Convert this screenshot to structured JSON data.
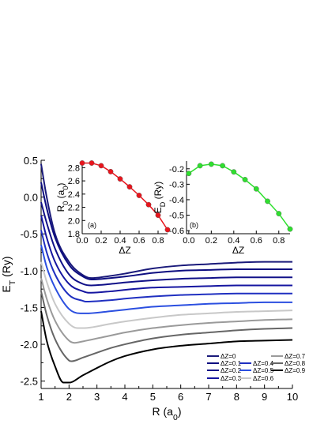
{
  "chart_data": [
    {
      "id": "main",
      "type": "line",
      "xlabel_main": "R (a",
      "xlabel_sub": "0",
      "xlabel_end": ")",
      "ylabel_main": "E",
      "ylabel_sub": "T",
      "ylabel_end": " (Ry)",
      "xlim": [
        1,
        10
      ],
      "ylim": [
        -2.6,
        0.5
      ],
      "xticks": [
        "1",
        "2",
        "3",
        "4",
        "5",
        "6",
        "7",
        "8",
        "9",
        "10"
      ],
      "yticks": [
        "0.5",
        "0.0",
        "-0.5",
        "-1.0",
        "-1.5",
        "-2.0",
        "-2.5"
      ],
      "grid": false,
      "legend_position": "bottom-right",
      "series": [
        {
          "name": "ΔZ=0",
          "color": "#1a1a7a",
          "x": [
            1.0,
            1.2,
            1.5,
            2.0,
            2.5,
            2.8,
            3.5,
            4.0,
            5.0,
            6.0,
            7.0,
            8.0,
            9.0,
            10.0
          ],
          "y": [
            0.45,
            0.0,
            -0.5,
            -0.88,
            -1.06,
            -1.1,
            -1.07,
            -1.04,
            -0.97,
            -0.93,
            -0.91,
            -0.89,
            -0.88,
            -0.88
          ]
        },
        {
          "name": "ΔZ=0.1",
          "color": "#0d0d80",
          "x": [
            1.0,
            1.2,
            1.5,
            2.0,
            2.5,
            2.8,
            3.5,
            4.0,
            5.0,
            6.0,
            7.0,
            8.0,
            9.0,
            10.0
          ],
          "y": [
            0.2,
            -0.15,
            -0.55,
            -0.92,
            -1.08,
            -1.12,
            -1.1,
            -1.08,
            -1.03,
            -1.0,
            -0.99,
            -0.98,
            -0.98,
            -0.98
          ]
        },
        {
          "name": "ΔZ=0.2",
          "color": "#101088",
          "x": [
            1.0,
            1.2,
            1.5,
            2.0,
            2.5,
            2.8,
            3.5,
            4.0,
            5.0,
            6.0,
            7.0,
            8.0,
            9.0,
            10.0
          ],
          "y": [
            -0.07,
            -0.35,
            -0.7,
            -1.05,
            -1.18,
            -1.2,
            -1.18,
            -1.16,
            -1.13,
            -1.11,
            -1.1,
            -1.09,
            -1.09,
            -1.09
          ]
        },
        {
          "name": "ΔZ=0.3",
          "color": "#1515a0",
          "x": [
            1.0,
            1.2,
            1.5,
            2.0,
            2.5,
            2.7,
            3.5,
            4.0,
            5.0,
            6.0,
            7.0,
            8.0,
            9.0,
            10.0
          ],
          "y": [
            -0.25,
            -0.55,
            -0.88,
            -1.18,
            -1.28,
            -1.3,
            -1.28,
            -1.26,
            -1.23,
            -1.22,
            -1.21,
            -1.2,
            -1.2,
            -1.2
          ]
        },
        {
          "name": "ΔZ=0.4",
          "color": "#1f2fc0",
          "x": [
            1.0,
            1.2,
            1.5,
            2.0,
            2.5,
            2.6,
            3.5,
            4.0,
            5.0,
            6.0,
            7.0,
            8.0,
            9.0,
            10.0
          ],
          "y": [
            -0.45,
            -0.75,
            -1.05,
            -1.33,
            -1.41,
            -1.42,
            -1.4,
            -1.38,
            -1.35,
            -1.33,
            -1.32,
            -1.31,
            -1.31,
            -1.31
          ]
        },
        {
          "name": "ΔZ=0.5",
          "color": "#2b4fe0",
          "x": [
            1.0,
            1.2,
            1.5,
            2.0,
            2.4,
            2.6,
            3.5,
            4.0,
            5.0,
            6.0,
            7.0,
            8.0,
            9.0,
            10.0
          ],
          "y": [
            -0.65,
            -0.95,
            -1.23,
            -1.52,
            -1.58,
            -1.58,
            -1.55,
            -1.53,
            -1.49,
            -1.47,
            -1.45,
            -1.44,
            -1.43,
            -1.43
          ]
        },
        {
          "name": "ΔZ=0.6",
          "color": "#c8c8c8",
          "x": [
            1.0,
            1.2,
            1.5,
            2.0,
            2.3,
            2.5,
            3.5,
            4.0,
            5.0,
            6.0,
            7.0,
            8.0,
            9.0,
            10.0
          ],
          "y": [
            -0.88,
            -1.15,
            -1.45,
            -1.72,
            -1.78,
            -1.78,
            -1.72,
            -1.69,
            -1.64,
            -1.6,
            -1.58,
            -1.56,
            -1.55,
            -1.54
          ]
        },
        {
          "name": "ΔZ=0.7",
          "color": "#9a9a9a",
          "x": [
            1.0,
            1.2,
            1.5,
            2.0,
            2.2,
            2.5,
            3.5,
            4.0,
            5.0,
            6.0,
            7.0,
            8.0,
            9.0,
            10.0
          ],
          "y": [
            -1.1,
            -1.38,
            -1.68,
            -1.95,
            -1.98,
            -1.96,
            -1.88,
            -1.84,
            -1.78,
            -1.74,
            -1.71,
            -1.69,
            -1.67,
            -1.66
          ]
        },
        {
          "name": "ΔZ=0.8",
          "color": "#666666",
          "x": [
            1.0,
            1.2,
            1.5,
            2.0,
            2.1,
            2.5,
            3.5,
            4.0,
            5.0,
            6.0,
            7.0,
            8.0,
            9.0,
            10.0
          ],
          "y": [
            -1.28,
            -1.6,
            -1.93,
            -2.22,
            -2.23,
            -2.18,
            -2.05,
            -2.0,
            -1.92,
            -1.87,
            -1.84,
            -1.81,
            -1.79,
            -1.78
          ]
        },
        {
          "name": "ΔZ=0.9",
          "color": "#000000",
          "x": [
            1.0,
            1.2,
            1.5,
            1.8,
            2.0,
            2.5,
            3.5,
            4.0,
            5.0,
            6.0,
            7.0,
            8.0,
            9.0,
            10.0
          ],
          "y": [
            -1.55,
            -1.95,
            -2.3,
            -2.52,
            -2.52,
            -2.42,
            -2.23,
            -2.16,
            -2.07,
            -2.02,
            -1.99,
            -1.96,
            -1.95,
            -1.94
          ]
        }
      ]
    },
    {
      "id": "inset_a",
      "type": "line",
      "panel_label": "(a)",
      "xlabel": "ΔZ",
      "ylabel_main": "R",
      "ylabel_sub": "0",
      "ylabel_end": " (a",
      "ylabel_sub2": "0",
      "ylabel_end2": ")",
      "xlim": [
        0.0,
        0.9
      ],
      "ylim": [
        1.8,
        2.9
      ],
      "xticks": [
        "0.0",
        "0.2",
        "0.4",
        "0.6",
        "0.8"
      ],
      "yticks": [
        "2.8",
        "2.6",
        "2.4",
        "2.2",
        "2.0",
        "1.8"
      ],
      "marker_color": "#e8141c",
      "x": [
        0.0,
        0.1,
        0.2,
        0.3,
        0.4,
        0.5,
        0.6,
        0.7,
        0.8,
        0.9
      ],
      "y": [
        2.87,
        2.87,
        2.83,
        2.74,
        2.63,
        2.51,
        2.38,
        2.24,
        2.08,
        1.86
      ]
    },
    {
      "id": "inset_b",
      "type": "line",
      "panel_label": "(b)",
      "xlabel": "ΔZ",
      "ylabel_main": "E",
      "ylabel_sub": "D",
      "ylabel_end": " (Ry)",
      "xlim": [
        -0.02,
        0.9
      ],
      "ylim": [
        -0.62,
        -0.15
      ],
      "xticks": [
        "0.0",
        "0.2",
        "0.4",
        "0.6",
        "0.8"
      ],
      "yticks": [
        "-0.2",
        "-0.3",
        "-0.4",
        "-0.5",
        "-0.6"
      ],
      "marker_color": "#2ee02e",
      "x": [
        0.0,
        0.1,
        0.2,
        0.3,
        0.4,
        0.5,
        0.6,
        0.7,
        0.8,
        0.9
      ],
      "y": [
        -0.23,
        -0.18,
        -0.17,
        -0.18,
        -0.22,
        -0.27,
        -0.33,
        -0.41,
        -0.49,
        -0.59
      ]
    }
  ]
}
